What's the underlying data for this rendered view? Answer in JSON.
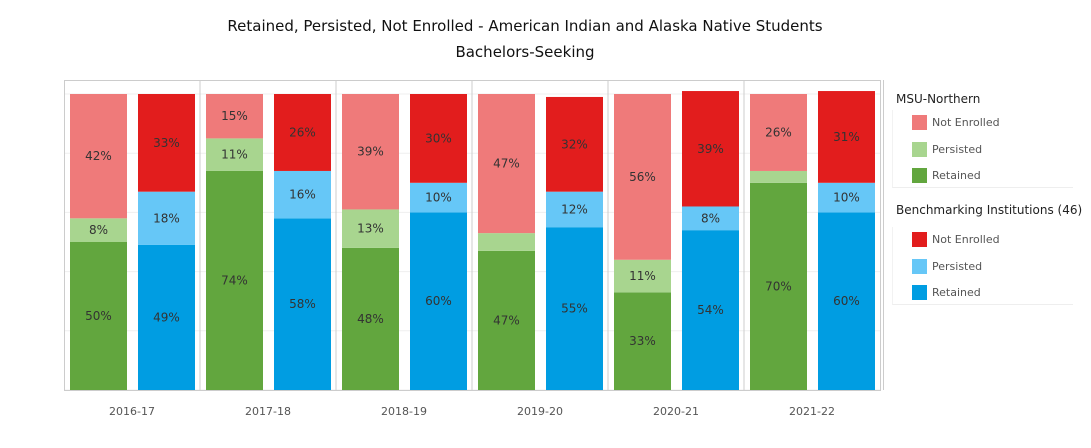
{
  "title_line1": "Retained, Persisted, Not Enrolled - American Indian and Alaska Native Students",
  "title_line2": "Bachelors-Seeking",
  "legend": {
    "groups": [
      {
        "title": "MSU-Northern",
        "items": [
          {
            "label": "Not Enrolled",
            "color": "#ef7a7a"
          },
          {
            "label": "Persisted",
            "color": "#a8d58f"
          },
          {
            "label": "Retained",
            "color": "#62a63e"
          }
        ]
      },
      {
        "title": "Benchmarking Institutions (46)",
        "items": [
          {
            "label": "Not Enrolled",
            "color": "#e21d1d"
          },
          {
            "label": "Persisted",
            "color": "#66c7f7"
          },
          {
            "label": "Retained",
            "color": "#009de2"
          }
        ]
      }
    ]
  },
  "chart_data": {
    "type": "bar",
    "stacked": true,
    "title": "Retained, Persisted, Not Enrolled - American Indian and Alaska Native Students",
    "subtitle": "Bachelors-Seeking",
    "categories": [
      "2016-17",
      "2017-18",
      "2018-19",
      "2019-20",
      "2020-21",
      "2021-22"
    ],
    "ylim": [
      0,
      100
    ],
    "grid": true,
    "legend_position": "right",
    "groups": [
      {
        "name": "MSU-Northern",
        "series": [
          {
            "name": "Retained",
            "color": "#62a63e",
            "values": [
              50,
              74,
              48,
              47,
              33,
              70
            ],
            "labels": [
              "50%",
              "74%",
              "48%",
              "47%",
              "33%",
              "70%"
            ]
          },
          {
            "name": "Persisted",
            "color": "#a8d58f",
            "values": [
              8,
              11,
              13,
              6,
              11,
              4
            ],
            "labels": [
              "8%",
              "11%",
              "13%",
              "",
              "11%",
              ""
            ]
          },
          {
            "name": "Not Enrolled",
            "color": "#ef7a7a",
            "values": [
              42,
              15,
              39,
              47,
              56,
              26
            ],
            "labels": [
              "42%",
              "15%",
              "39%",
              "47%",
              "56%",
              "26%"
            ]
          }
        ]
      },
      {
        "name": "Benchmarking Institutions (46)",
        "series": [
          {
            "name": "Retained",
            "color": "#009de2",
            "values": [
              49,
              58,
              60,
              55,
              54,
              60
            ],
            "labels": [
              "49%",
              "58%",
              "60%",
              "55%",
              "54%",
              "60%"
            ]
          },
          {
            "name": "Persisted",
            "color": "#66c7f7",
            "values": [
              18,
              16,
              10,
              12,
              8,
              10
            ],
            "labels": [
              "18%",
              "16%",
              "10%",
              "12%",
              "8%",
              "10%"
            ]
          },
          {
            "name": "Not Enrolled",
            "color": "#e21d1d",
            "values": [
              33,
              26,
              30,
              32,
              39,
              31
            ],
            "labels": [
              "33%",
              "26%",
              "30%",
              "32%",
              "39%",
              "31%"
            ]
          }
        ]
      }
    ]
  }
}
